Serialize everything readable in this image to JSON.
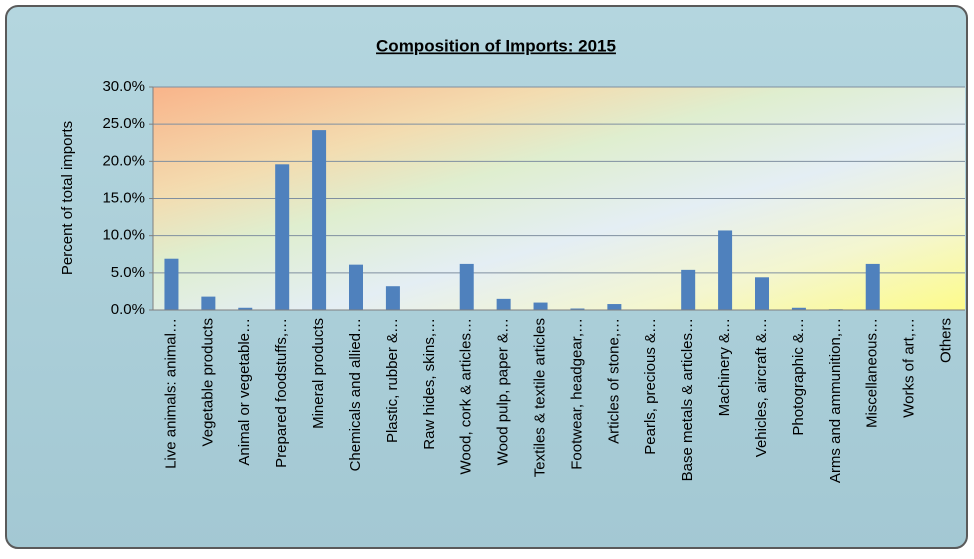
{
  "chart_data": {
    "type": "bar",
    "title": "Composition of Imports: 2015",
    "y_label": "Percent of total imports",
    "categories": [
      "Live animals: animal…",
      "Vegetable products",
      "Animal or vegetable…",
      "Prepared foodstuffs,…",
      "Mineral products",
      "Chemicals and allied…",
      "Plastic, rubber &…",
      "Raw hides, skins,…",
      "Wood, cork & articles…",
      "Wood pulp, paper &…",
      "Textiles & textile articles",
      "Footwear, headgear,…",
      "Articles of stone,…",
      "Pearls, precious &…",
      "Base metals & articles…",
      "Machinery &…",
      "Vehicles, aircraft &…",
      "Photographic &…",
      "Arms and ammunition,…",
      "Miscellaneous…",
      "Works of art,…",
      "Others"
    ],
    "values": [
      6.9,
      1.8,
      0.3,
      19.6,
      24.2,
      6.1,
      3.2,
      0.0,
      6.2,
      1.5,
      1.0,
      0.2,
      0.8,
      0.0,
      5.4,
      10.7,
      4.4,
      0.3,
      0.1,
      6.2,
      0.0,
      0.0
    ],
    "color": "#4f81bd",
    "ylim": [
      0,
      30
    ],
    "yticks": [
      {
        "value": 0,
        "label": "0.0%"
      },
      {
        "value": 5,
        "label": "5.0%"
      },
      {
        "value": 10,
        "label": "10.0%"
      },
      {
        "value": 15,
        "label": "15.0%"
      },
      {
        "value": 20,
        "label": "20.0%"
      },
      {
        "value": 25,
        "label": "25.0%"
      },
      {
        "value": 30,
        "label": "30.0%"
      }
    ],
    "grid": true
  }
}
